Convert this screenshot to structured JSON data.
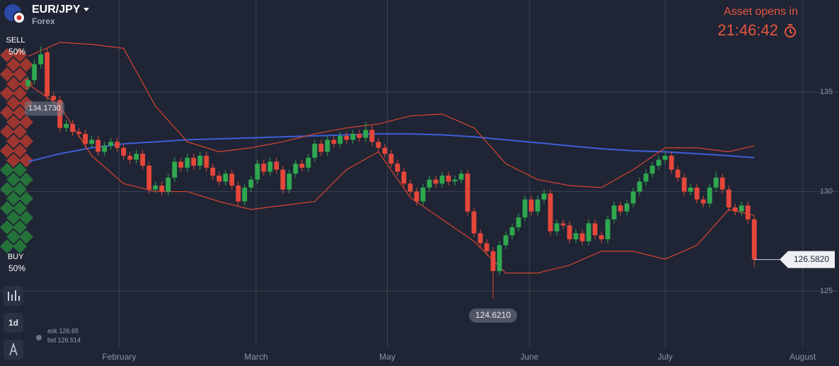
{
  "header": {
    "asset": "EUR/JPY",
    "category": "Forex",
    "countdown_label": "Asset opens in",
    "countdown": "21:46:42"
  },
  "sidebar": {
    "sell_label": "SELL",
    "sell_percent": "50%",
    "buy_label": "BUY",
    "buy_percent": "50%",
    "timeframe": "1d"
  },
  "quote": {
    "ask": "ask 126.65",
    "bid": "bid 126.514"
  },
  "chart_data": {
    "type": "candlestick",
    "up_color": "#2fa84f",
    "down_color": "#e5473a",
    "xlim": [
      -4.4,
      127.3
    ],
    "ylim": [
      122.19,
      139.63
    ],
    "yticks": [
      125,
      130,
      135
    ],
    "xticks": [
      {
        "value": 14.3,
        "label": "February"
      },
      {
        "value": 35.8,
        "label": "March"
      },
      {
        "value": 56.4,
        "label": "May"
      },
      {
        "value": 78.7,
        "label": "June"
      },
      {
        "value": 100,
        "label": "July"
      },
      {
        "value": 121.6,
        "label": "August"
      }
    ],
    "grid": true,
    "open": [
      135.3,
      135.6,
      136.4,
      137.0,
      134.8,
      134.6,
      133.2,
      133.4,
      133.0,
      132.9,
      132.4,
      132.6,
      132.0,
      132.3,
      132.5,
      132.2,
      131.8,
      131.6,
      131.9,
      131.3,
      130.1,
      130.3,
      130.0,
      130.7,
      131.5,
      131.2,
      131.7,
      131.3,
      131.8,
      131.2,
      130.8,
      130.5,
      130.9,
      130.3,
      129.5,
      130.2,
      130.6,
      131.4,
      131.0,
      131.5,
      131.1,
      130.1,
      130.9,
      131.4,
      131.2,
      131.7,
      132.4,
      132.0,
      132.6,
      132.4,
      132.8,
      132.6,
      132.9,
      132.7,
      133.1,
      132.5,
      132.2,
      131.9,
      131.4,
      131.0,
      130.4,
      130.0,
      129.5,
      130.2,
      130.6,
      130.4,
      130.8,
      130.5,
      130.6,
      130.9,
      129.0,
      127.9,
      127.4,
      127.0,
      126.0,
      127.3,
      127.8,
      128.2,
      128.7,
      129.6,
      129.0,
      129.6,
      129.9,
      128.0,
      128.4,
      128.3,
      127.6,
      127.9,
      127.5,
      128.4,
      127.8,
      127.6,
      128.6,
      129.3,
      129.0,
      129.4,
      130.0,
      130.5,
      130.9,
      131.3,
      131.6,
      131.8,
      131.1,
      130.7,
      130.0,
      130.2,
      129.6,
      129.4,
      130.2,
      130.7,
      130.1,
      129.2,
      129.0,
      129.3,
      128.6
    ],
    "high": [
      135.8,
      136.6,
      137.3,
      137.2,
      135.0,
      134.8,
      133.6,
      133.6,
      133.2,
      133.1,
      132.8,
      132.8,
      132.5,
      132.7,
      132.7,
      132.4,
      132.0,
      132.1,
      132.1,
      131.5,
      130.5,
      130.5,
      130.9,
      131.7,
      131.7,
      131.9,
      131.9,
      132.0,
      132.0,
      131.4,
      131.0,
      131.1,
      131.1,
      130.5,
      130.4,
      130.8,
      131.6,
      131.6,
      131.7,
      131.7,
      131.3,
      131.1,
      131.6,
      131.6,
      131.9,
      132.6,
      132.6,
      132.8,
      132.8,
      133.0,
      133.0,
      133.1,
      133.1,
      133.5,
      133.3,
      132.7,
      132.4,
      132.1,
      131.6,
      131.2,
      130.6,
      130.2,
      130.4,
      130.8,
      130.8,
      131.0,
      131.0,
      130.8,
      131.1,
      131.1,
      129.2,
      128.1,
      127.6,
      127.2,
      127.5,
      128.0,
      128.4,
      128.9,
      129.8,
      129.8,
      129.8,
      130.1,
      130.1,
      128.6,
      128.6,
      128.5,
      128.1,
      128.1,
      128.6,
      128.6,
      128.0,
      128.8,
      129.5,
      129.5,
      129.6,
      130.2,
      130.7,
      131.1,
      131.5,
      131.8,
      132.0,
      132.0,
      131.3,
      130.9,
      130.4,
      130.4,
      129.8,
      130.4,
      131.0,
      130.9,
      130.3,
      129.4,
      129.5,
      129.5,
      128.8
    ],
    "low": [
      135.1,
      135.4,
      136.2,
      134.6,
      134.4,
      133.0,
      133.0,
      132.8,
      132.7,
      132.2,
      132.2,
      131.8,
      131.8,
      132.1,
      132.0,
      131.6,
      131.4,
      131.4,
      131.1,
      129.9,
      129.9,
      129.8,
      129.8,
      130.5,
      131.0,
      131.0,
      131.1,
      131.1,
      131.0,
      130.6,
      130.3,
      130.3,
      130.1,
      129.3,
      129.3,
      130.0,
      130.4,
      130.8,
      130.8,
      130.9,
      129.9,
      129.9,
      130.7,
      131.0,
      131.0,
      131.5,
      131.8,
      131.8,
      132.2,
      132.2,
      132.4,
      132.4,
      132.5,
      132.5,
      132.3,
      132.0,
      131.7,
      131.2,
      130.8,
      130.2,
      129.8,
      129.3,
      129.3,
      130.0,
      130.2,
      130.2,
      130.3,
      130.3,
      130.4,
      128.8,
      127.7,
      127.2,
      126.8,
      124.621,
      125.8,
      127.1,
      127.6,
      128.0,
      128.5,
      128.8,
      128.8,
      129.4,
      127.8,
      127.8,
      128.1,
      127.4,
      127.4,
      127.3,
      127.3,
      127.6,
      127.4,
      127.4,
      128.4,
      128.8,
      128.8,
      129.2,
      129.8,
      130.3,
      130.7,
      131.1,
      131.4,
      130.9,
      130.5,
      129.8,
      129.8,
      129.4,
      129.2,
      129.2,
      130.0,
      129.9,
      129.0,
      128.8,
      128.8,
      128.4,
      126.2
    ],
    "close": [
      135.6,
      136.4,
      136.9,
      134.8,
      134.6,
      133.2,
      133.4,
      133.0,
      132.9,
      132.4,
      132.6,
      132.0,
      132.3,
      132.5,
      132.2,
      131.8,
      131.6,
      131.9,
      131.3,
      130.1,
      130.3,
      130.0,
      130.7,
      131.5,
      131.2,
      131.7,
      131.3,
      131.8,
      131.2,
      130.8,
      130.5,
      130.9,
      130.3,
      129.5,
      130.2,
      130.6,
      131.4,
      131.0,
      131.5,
      131.1,
      130.1,
      130.9,
      131.4,
      131.2,
      131.7,
      132.4,
      132.0,
      132.6,
      132.4,
      132.8,
      132.6,
      132.9,
      132.7,
      133.1,
      132.5,
      132.2,
      131.9,
      131.4,
      131.0,
      130.4,
      130.0,
      129.5,
      130.2,
      130.6,
      130.4,
      130.8,
      130.5,
      130.6,
      130.9,
      129.0,
      127.9,
      127.4,
      127.0,
      126.0,
      127.3,
      127.8,
      128.2,
      128.7,
      129.6,
      129.0,
      129.6,
      129.9,
      128.0,
      128.4,
      128.3,
      127.6,
      127.9,
      127.5,
      128.4,
      127.8,
      127.6,
      128.6,
      129.3,
      129.0,
      129.4,
      130.0,
      130.5,
      130.9,
      131.3,
      131.6,
      131.8,
      131.1,
      130.7,
      130.0,
      130.2,
      129.6,
      129.4,
      130.2,
      130.7,
      130.1,
      129.2,
      129.0,
      129.3,
      128.6,
      126.582
    ],
    "line_x": [
      0,
      5,
      10,
      15,
      20,
      25,
      30,
      35,
      40,
      45,
      50,
      55,
      60,
      65,
      70,
      75,
      80,
      85,
      90,
      95,
      100,
      105,
      110,
      114
    ],
    "lines": [
      {
        "color": "#3f5fd6",
        "values": [
          131.5,
          131.9,
          132.2,
          132.4,
          132.5,
          132.6,
          132.65,
          132.7,
          132.75,
          132.8,
          132.85,
          132.9,
          132.9,
          132.85,
          132.75,
          132.6,
          132.45,
          132.3,
          132.15,
          132.05,
          132.0,
          131.9,
          131.8,
          131.7
        ]
      },
      {
        "color": "#d9442f",
        "values": [
          136.8,
          137.5,
          137.4,
          137.2,
          134.3,
          132.5,
          132.0,
          132.2,
          132.5,
          132.9,
          133.2,
          133.4,
          133.8,
          133.9,
          133.2,
          131.4,
          130.6,
          130.3,
          130.2,
          131.1,
          132.2,
          132.2,
          132.0,
          132.3
        ]
      },
      {
        "color": "#d9442f",
        "values": [
          135.4,
          134.3,
          131.8,
          130.4,
          130.0,
          130.0,
          129.5,
          129.1,
          129.3,
          129.5,
          131.1,
          132.0,
          129.7,
          128.6,
          127.5,
          125.9,
          125.9,
          126.3,
          127.0,
          127.0,
          126.6,
          127.3,
          129.1,
          128.8
        ]
      }
    ],
    "price_labels": [
      {
        "value": 134.173,
        "label": "134.1730"
      },
      {
        "value": 124.621,
        "label": "124.6210"
      },
      {
        "value": 126.582,
        "label": "126.5820"
      }
    ]
  }
}
